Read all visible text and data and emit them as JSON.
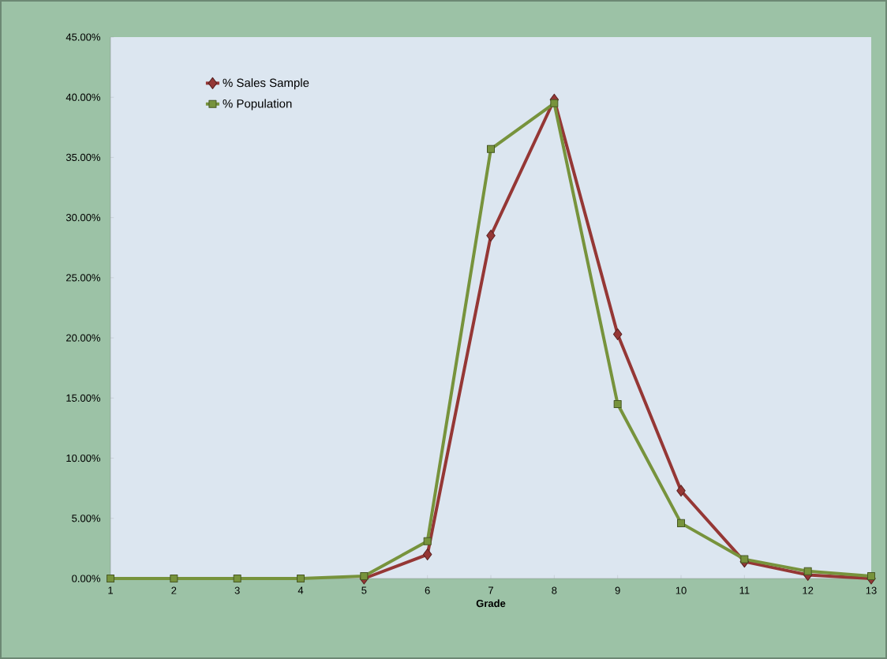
{
  "chart_data": {
    "type": "line",
    "xlabel": "Grade",
    "categories": [
      "1",
      "2",
      "3",
      "4",
      "5",
      "6",
      "7",
      "8",
      "9",
      "10",
      "11",
      "12",
      "13"
    ],
    "series": [
      {
        "name": "% Sales Sample",
        "color": "#953735",
        "marker": "diamond",
        "values": [
          null,
          null,
          null,
          null,
          0,
          2.0,
          28.5,
          39.8,
          20.3,
          7.3,
          1.4,
          0.3,
          0
        ]
      },
      {
        "name": "% Population",
        "color": "#77933c",
        "marker": "square",
        "values": [
          0,
          0,
          0,
          0,
          0.2,
          3.1,
          35.7,
          39.5,
          14.5,
          4.6,
          1.6,
          0.6,
          0.2
        ]
      }
    ],
    "ylim": [
      0,
      45
    ],
    "yticks": [
      {
        "value": 0,
        "label": "0.00%"
      },
      {
        "value": 5,
        "label": "5.00%"
      },
      {
        "value": 10,
        "label": "10.00%"
      },
      {
        "value": 15,
        "label": "15.00%"
      },
      {
        "value": 20,
        "label": "20.00%"
      },
      {
        "value": 25,
        "label": "25.00%"
      },
      {
        "value": 30,
        "label": "30.00%"
      },
      {
        "value": 35,
        "label": "35.00%"
      },
      {
        "value": 40,
        "label": "40.00%"
      },
      {
        "value": 45,
        "label": "45.00%"
      }
    ],
    "grid": false,
    "legend": "top left",
    "line_style": "solid"
  }
}
